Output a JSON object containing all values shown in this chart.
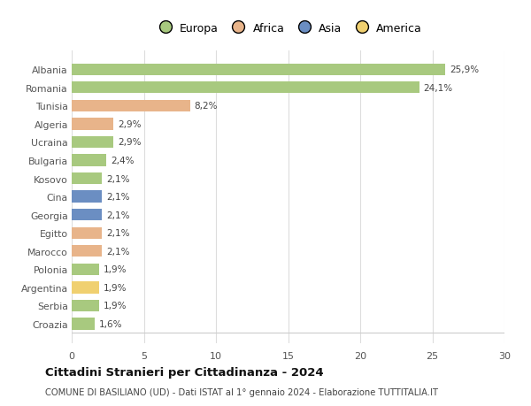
{
  "countries": [
    "Albania",
    "Romania",
    "Tunisia",
    "Algeria",
    "Ucraina",
    "Bulgaria",
    "Kosovo",
    "Cina",
    "Georgia",
    "Egitto",
    "Marocco",
    "Polonia",
    "Argentina",
    "Serbia",
    "Croazia"
  ],
  "values": [
    25.9,
    24.1,
    8.2,
    2.9,
    2.9,
    2.4,
    2.1,
    2.1,
    2.1,
    2.1,
    2.1,
    1.9,
    1.9,
    1.9,
    1.6
  ],
  "labels": [
    "25,9%",
    "24,1%",
    "8,2%",
    "2,9%",
    "2,9%",
    "2,4%",
    "2,1%",
    "2,1%",
    "2,1%",
    "2,1%",
    "2,1%",
    "1,9%",
    "1,9%",
    "1,9%",
    "1,6%"
  ],
  "continents": [
    "Europa",
    "Europa",
    "Africa",
    "Africa",
    "Europa",
    "Europa",
    "Europa",
    "Asia",
    "Asia",
    "Africa",
    "Africa",
    "Europa",
    "America",
    "Europa",
    "Europa"
  ],
  "continent_colors": {
    "Europa": "#a8c97f",
    "Africa": "#e8b48a",
    "Asia": "#6b8ec2",
    "America": "#f0d070"
  },
  "legend_order": [
    "Europa",
    "Africa",
    "Asia",
    "America"
  ],
  "xlim": [
    0,
    30
  ],
  "xticks": [
    0,
    5,
    10,
    15,
    20,
    25,
    30
  ],
  "title": "Cittadini Stranieri per Cittadinanza - 2024",
  "subtitle": "COMUNE DI BASILIANO (UD) - Dati ISTAT al 1° gennaio 2024 - Elaborazione TUTTITALIA.IT",
  "background_color": "#ffffff",
  "bar_height": 0.65,
  "grid_color": "#dddddd"
}
